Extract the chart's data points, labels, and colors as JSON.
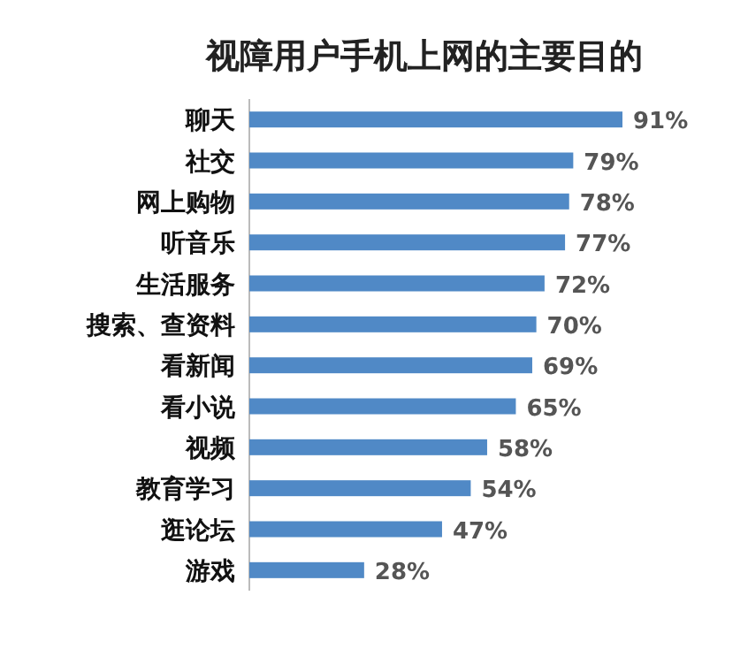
{
  "chart_data": {
    "type": "bar",
    "orientation": "horizontal",
    "title": "视障用户手机上网的主要目的",
    "categories": [
      "聊天",
      "社交",
      "网上购物",
      "听音乐",
      "生活服务",
      "搜索、查资料",
      "看新闻",
      "看小说",
      "视频",
      "教育学习",
      "逛论坛",
      "游戏"
    ],
    "values": [
      91,
      79,
      78,
      77,
      72,
      70,
      69,
      65,
      58,
      54,
      47,
      28
    ],
    "value_labels": [
      "91%",
      "79%",
      "78%",
      "77%",
      "72%",
      "70%",
      "69%",
      "65%",
      "58%",
      "54%",
      "47%",
      "28%"
    ],
    "color": "#5089c6"
  }
}
